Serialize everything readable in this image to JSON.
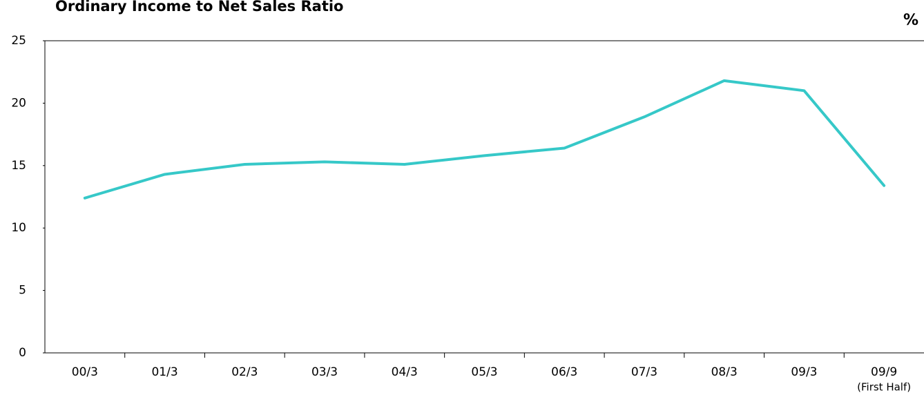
{
  "chart_data": {
    "type": "line",
    "title": "Ordinary Income to Net Sales Ratio",
    "y_unit": "%",
    "categories": [
      "00/3",
      "01/3",
      "02/3",
      "03/3",
      "04/3",
      "05/3",
      "06/3",
      "07/3",
      "08/3",
      "09/3",
      "09/9"
    ],
    "annotation": "(First Half)",
    "series": [
      {
        "name": "Ordinary Income to Net Sales Ratio",
        "color": "#36c8c8",
        "values": [
          12.4,
          14.3,
          15.1,
          15.3,
          15.1,
          15.8,
          16.4,
          18.9,
          21.8,
          21.0,
          13.4
        ]
      }
    ],
    "ylim": [
      0,
      25
    ],
    "yticks": [
      0,
      5,
      10,
      15,
      20,
      25
    ],
    "grid": false
  }
}
